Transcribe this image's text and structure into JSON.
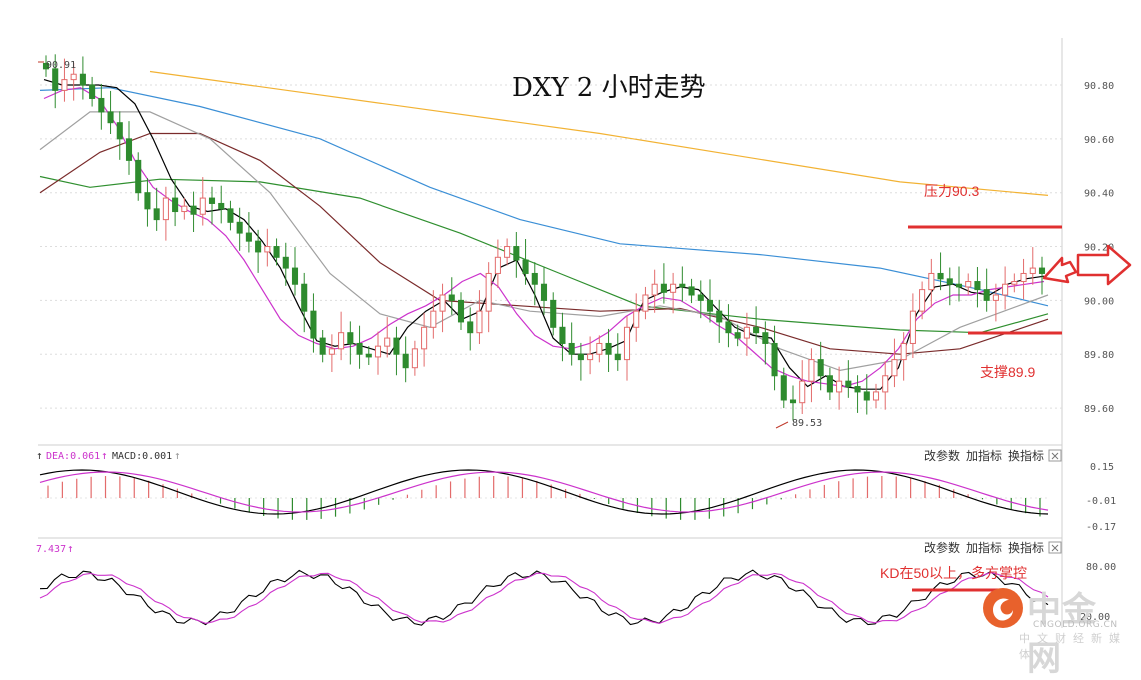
{
  "title": "DXY 2 小时走势",
  "colors": {
    "up": "#e36b6b",
    "down": "#2e8b2e",
    "ma5": "#000000",
    "ma10": "#cc33cc",
    "ma20": "#a0a0a0",
    "ma30": "#7a2b2b",
    "ma60": "#2f8f2f",
    "ma120": "#3b8fd6",
    "ma250": "#f2b233",
    "red": "#e03030",
    "grid": "#dddddd"
  },
  "price_axis": {
    "ticks": [
      "90.80",
      "90.60",
      "90.40",
      "90.20",
      "90.00",
      "89.80",
      "89.60"
    ]
  },
  "markers": {
    "high": "90.91",
    "low": "89.53"
  },
  "annotations": {
    "resistance": "压力90.3",
    "support": "支撑89.9",
    "kd_note": "KD在50以上，多方掌控"
  },
  "macd_panel": {
    "dea_label": "DEA:0.061",
    "macd_label": "MACD:0.001",
    "ticks": [
      "0.15",
      "-0.01",
      "-0.17"
    ],
    "buttons": [
      "改参数",
      "加指标",
      "换指标"
    ]
  },
  "kd_panel": {
    "value_label": "7.437",
    "ticks": [
      "80.00",
      "20.00"
    ],
    "buttons": [
      "改参数",
      "加指标",
      "换指标"
    ]
  },
  "watermark": {
    "name": "中金网",
    "domain": "CNGOLD.ORG.CN",
    "tagline": "中文财经新媒体"
  },
  "chart_data": {
    "type": "candlestick",
    "title": "DXY 2 小时走势",
    "ylim": [
      89.5,
      90.93
    ],
    "y_ticks": [
      90.8,
      90.6,
      90.4,
      90.2,
      90.0,
      89.8,
      89.6
    ],
    "high": 90.91,
    "low": 89.53,
    "resistance": 90.3,
    "support": 89.9,
    "close_trend": [
      90.86,
      90.78,
      90.82,
      90.84,
      90.8,
      90.75,
      90.7,
      90.66,
      90.6,
      90.52,
      90.4,
      90.34,
      90.3,
      90.38,
      90.33,
      90.35,
      90.32,
      90.38,
      90.36,
      90.34,
      90.29,
      90.25,
      90.22,
      90.18,
      90.2,
      90.16,
      90.12,
      90.06,
      89.96,
      89.86,
      89.8,
      89.82,
      89.88,
      89.84,
      89.8,
      89.79,
      89.83,
      89.86,
      89.8,
      89.75,
      89.82,
      89.9,
      89.96,
      90.02,
      90.0,
      89.92,
      89.88,
      89.96,
      90.1,
      90.16,
      90.2,
      90.15,
      90.1,
      90.06,
      90.0,
      89.9,
      89.84,
      89.8,
      89.78,
      89.8,
      89.84,
      89.8,
      89.78,
      89.9,
      89.96,
      90.02,
      90.06,
      90.03,
      90.06,
      90.05,
      90.02,
      90.0,
      89.96,
      89.92,
      89.88,
      89.86,
      89.9,
      89.88,
      89.84,
      89.72,
      89.63,
      89.62,
      89.7,
      89.78,
      89.72,
      89.66,
      89.7,
      89.68,
      89.66,
      89.63,
      89.66,
      89.72,
      89.78,
      89.84,
      89.96,
      90.04,
      90.1,
      90.08,
      90.06,
      90.05,
      90.07,
      90.04,
      90.0,
      90.02,
      90.06,
      90.07,
      90.1,
      90.12,
      90.1
    ],
    "series": [
      {
        "name": "MA5",
        "values": [
          90.82,
          90.8,
          90.8,
          90.8,
          90.79,
          90.73,
          90.6,
          90.45,
          90.35,
          90.33,
          90.34,
          90.3,
          90.22,
          90.12,
          89.98,
          89.85,
          89.83,
          89.84,
          89.82,
          89.8,
          89.9,
          89.96,
          90.0,
          89.93,
          89.96,
          90.12,
          90.15,
          90.02,
          89.86,
          89.8,
          89.8,
          89.82,
          89.85,
          90.0,
          90.03,
          90.05,
          90.04,
          89.97,
          89.9,
          89.87,
          89.86,
          89.75,
          89.68,
          89.72,
          89.68,
          89.67,
          89.67,
          89.75,
          89.95,
          90.05,
          90.06,
          90.03,
          90.02,
          90.06,
          90.08,
          90.09
        ]
      },
      {
        "name": "MA10",
        "values": [
          90.75,
          90.78,
          90.79,
          90.75,
          90.65,
          90.52,
          90.42,
          90.37,
          90.33,
          90.3,
          90.24,
          90.15,
          90.04,
          89.93,
          89.87,
          89.84,
          89.82,
          89.83,
          89.86,
          89.91,
          89.95,
          89.98,
          90.02,
          90.07,
          90.1,
          90.05,
          89.95,
          89.87,
          89.83,
          89.82,
          89.84,
          89.88,
          89.94,
          89.98,
          90.01,
          90.0,
          89.96,
          89.91,
          89.87,
          89.81,
          89.75,
          89.72,
          89.7,
          89.69,
          89.68,
          89.7,
          89.75,
          89.82,
          89.93,
          89.99,
          90.02,
          90.02,
          90.04,
          90.05,
          90.06,
          90.07
        ]
      }
    ]
  }
}
